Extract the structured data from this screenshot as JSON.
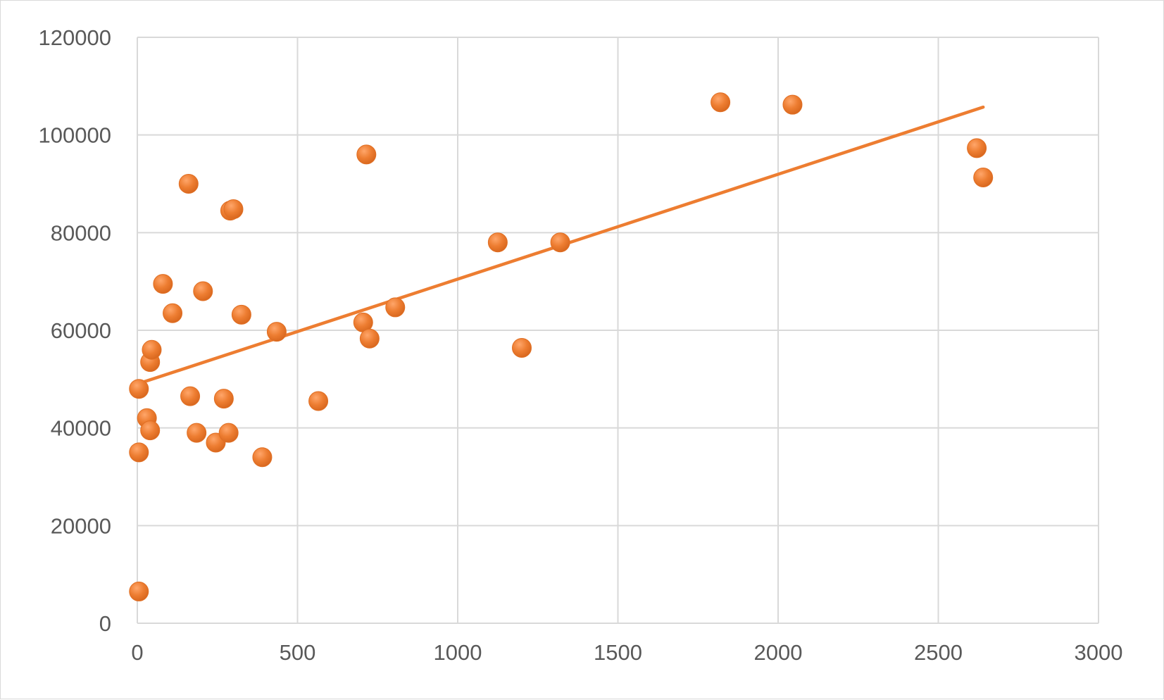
{
  "chart_data": {
    "type": "scatter",
    "title": "",
    "xlabel": "",
    "ylabel": "",
    "xlim": [
      0,
      3000
    ],
    "ylim": [
      0,
      120000
    ],
    "x_ticks": [
      0,
      500,
      1000,
      1500,
      2000,
      2500,
      3000
    ],
    "y_ticks": [
      0,
      20000,
      40000,
      60000,
      80000,
      100000,
      120000
    ],
    "x_tick_labels": [
      "0",
      "500",
      "1000",
      "1500",
      "2000",
      "2500",
      "3000"
    ],
    "y_tick_labels": [
      "0",
      "20000",
      "40000",
      "60000",
      "80000",
      "100000",
      "120000"
    ],
    "grid": true,
    "legend": "none",
    "point_color": "#ED7D31",
    "trendline_color": "#ED7D31",
    "points": [
      {
        "x": 5,
        "y": 6500
      },
      {
        "x": 5,
        "y": 35000
      },
      {
        "x": 5,
        "y": 48000
      },
      {
        "x": 30,
        "y": 42000
      },
      {
        "x": 40,
        "y": 39500
      },
      {
        "x": 40,
        "y": 53500
      },
      {
        "x": 45,
        "y": 56000
      },
      {
        "x": 80,
        "y": 69500
      },
      {
        "x": 110,
        "y": 63500
      },
      {
        "x": 160,
        "y": 90000
      },
      {
        "x": 165,
        "y": 46500
      },
      {
        "x": 185,
        "y": 39000
      },
      {
        "x": 205,
        "y": 68000
      },
      {
        "x": 245,
        "y": 37000
      },
      {
        "x": 270,
        "y": 46000
      },
      {
        "x": 285,
        "y": 39000
      },
      {
        "x": 290,
        "y": 84500
      },
      {
        "x": 300,
        "y": 84800
      },
      {
        "x": 325,
        "y": 63200
      },
      {
        "x": 390,
        "y": 34000
      },
      {
        "x": 435,
        "y": 59700
      },
      {
        "x": 565,
        "y": 45500
      },
      {
        "x": 705,
        "y": 61600
      },
      {
        "x": 715,
        "y": 96000
      },
      {
        "x": 725,
        "y": 58300
      },
      {
        "x": 805,
        "y": 64700
      },
      {
        "x": 1125,
        "y": 78000
      },
      {
        "x": 1200,
        "y": 56400
      },
      {
        "x": 1320,
        "y": 78000
      },
      {
        "x": 1820,
        "y": 106700
      },
      {
        "x": 2045,
        "y": 106200
      },
      {
        "x": 2620,
        "y": 97300
      },
      {
        "x": 2640,
        "y": 91300
      }
    ],
    "trendline": {
      "x": [
        0,
        2640
      ],
      "y": [
        49000,
        105700
      ]
    }
  }
}
